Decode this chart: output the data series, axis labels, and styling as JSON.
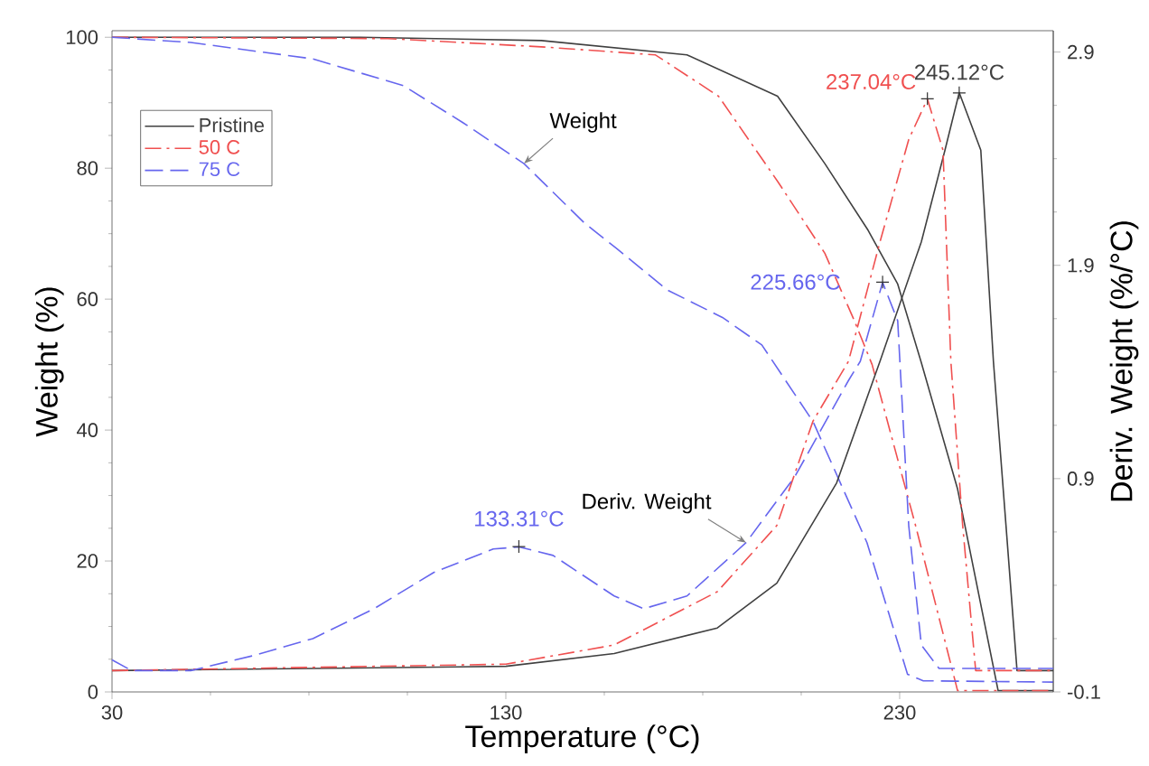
{
  "chart_data": {
    "type": "line",
    "xlabel": "Temperature (°C)",
    "ylabel": "Weight (%)",
    "y2label": "Deriv. Weight (%/°C)",
    "xlim": [
      30,
      269
    ],
    "xticks": [
      30,
      130,
      230
    ],
    "ylim": [
      0,
      101
    ],
    "yticks": [
      0,
      20,
      40,
      60,
      80,
      100
    ],
    "y2lim": [
      -0.1,
      3.0
    ],
    "y2ticks": [
      -0.1,
      0.9,
      1.9,
      2.9
    ],
    "legend": "top left",
    "series": [
      {
        "name": "Pristine",
        "color": "#404040",
        "line_style": "solid",
        "x": [
          30,
          93,
          139,
          176,
          199,
          211,
          222,
          229.5,
          235.5,
          244.7,
          255,
          269
        ],
        "values": [
          100,
          100,
          99.5,
          97.3,
          91,
          80.7,
          70.5,
          62.3,
          50.3,
          31,
          0.2,
          0.2
        ]
      },
      {
        "name": "50 C",
        "color": "#f05050",
        "line_style": "dashdot",
        "x": [
          30,
          100,
          140,
          168,
          184,
          199,
          211,
          218.5,
          223,
          234,
          244.7,
          269
        ],
        "values": [
          100,
          99.8,
          98.5,
          97.3,
          91,
          78,
          67,
          56.7,
          50,
          25.5,
          0.2,
          0.2
        ]
      },
      {
        "name": "75 C",
        "color": "#6666ee",
        "line_style": "dashed",
        "x": [
          30,
          50,
          81,
          104,
          119,
          134.6,
          150,
          158,
          171,
          185,
          195,
          208,
          221.7,
          232,
          236,
          269
        ],
        "values": [
          100,
          99.2,
          96.7,
          92.6,
          87,
          80.7,
          71.6,
          67.8,
          61.4,
          57.2,
          53,
          41.3,
          22.8,
          2.7,
          1.7,
          1.5
        ]
      },
      {
        "color": "#404040",
        "line_style": "solid",
        "axis": "y2",
        "x": [
          30,
          130,
          157.5,
          183.7,
          198.8,
          214,
          225,
          235.5,
          241.5,
          245.12,
          250.6,
          253.8,
          257,
          259.8,
          269
        ],
        "values": [
          0.0,
          0.02,
          0.08,
          0.2,
          0.41,
          0.88,
          1.45,
          2.01,
          2.44,
          2.71,
          2.44,
          1.45,
          0.68,
          0.0,
          0.0
        ]
      },
      {
        "color": "#f05050",
        "line_style": "dashdot",
        "axis": "y2",
        "x": [
          30,
          130,
          157.5,
          183.7,
          198.8,
          208,
          217,
          225,
          232.3,
          237.04,
          241,
          243,
          246,
          249.3,
          269
        ],
        "values": [
          0.0,
          0.03,
          0.12,
          0.37,
          0.68,
          1.17,
          1.45,
          2.01,
          2.49,
          2.68,
          2.44,
          1.45,
          0.68,
          0.0,
          0.0
        ]
      },
      {
        "color": "#6666ee",
        "line_style": "dashed",
        "axis": "y2",
        "x": [
          30,
          35,
          50,
          65.8,
          81,
          96.5,
          111.7,
          126.8,
          133.31,
          142,
          157.5,
          165,
          176,
          191,
          203.4,
          217,
          220,
          225.66,
          229.5,
          232.3,
          235.5,
          240,
          269
        ],
        "values": [
          0.05,
          0.0,
          0.0,
          0.07,
          0.15,
          0.29,
          0.46,
          0.57,
          0.58,
          0.54,
          0.35,
          0.29,
          0.35,
          0.6,
          0.91,
          1.36,
          1.45,
          1.82,
          1.64,
          0.68,
          0.12,
          0.01,
          0.01
        ]
      }
    ],
    "annotations": [
      {
        "text": "Weight",
        "x": 134.6,
        "y": 80.7
      },
      {
        "text": "Deriv. Weight",
        "x": 191,
        "y": 22.8
      },
      {
        "text": "245.12°C",
        "x": 245.12,
        "y": 91.5
      },
      {
        "text": "237.04°C",
        "x": 237.04,
        "y": 90.6
      },
      {
        "text": "225.66°C",
        "x": 225.66,
        "y": 62.6
      },
      {
        "text": "133.31°C",
        "x": 133.31,
        "y": 22.2
      }
    ]
  }
}
